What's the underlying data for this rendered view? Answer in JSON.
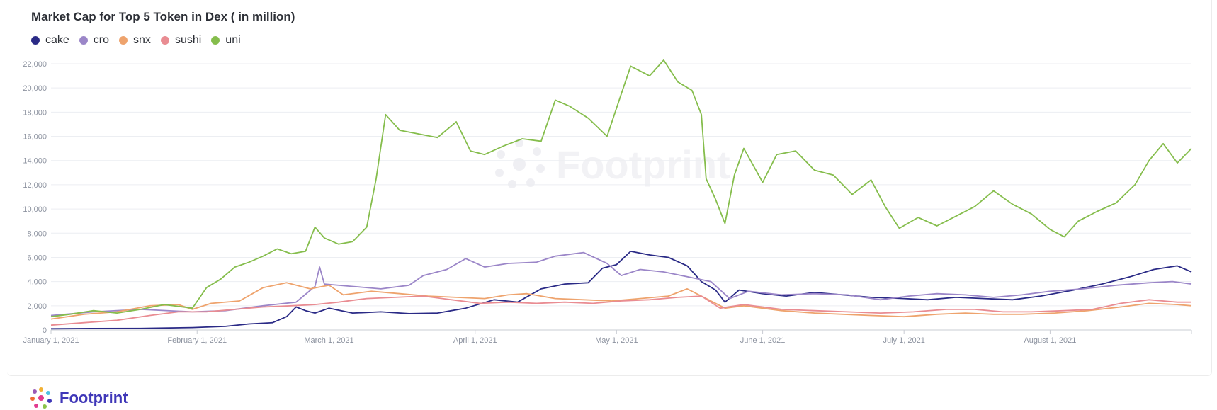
{
  "brand": {
    "name": "Footprint"
  },
  "colors": {
    "cake": "#2a2a86",
    "cro": "#9b86c8",
    "snx": "#eea36d",
    "sushi": "#e98c92",
    "uni": "#85bd4c",
    "grid": "#eceef2",
    "axis": "#c9ccd3"
  },
  "chart_data": {
    "type": "line",
    "title": "Market Cap for Top 5 Token in Dex ( in million)",
    "xlabel": "",
    "ylabel": "",
    "x_range": [
      "2021-01-01",
      "2021-08-31"
    ],
    "ylim": [
      0,
      22000
    ],
    "yticks": [
      0,
      2000,
      4000,
      6000,
      8000,
      10000,
      12000,
      14000,
      16000,
      18000,
      20000,
      22000
    ],
    "ytick_labels": [
      "0",
      "2,000",
      "4,000",
      "6,000",
      "8,000",
      "10,000",
      "12,000",
      "14,000",
      "16,000",
      "18,000",
      "20,000",
      "22,000"
    ],
    "xticks": [
      "2021-01-01",
      "2021-02-01",
      "2021-03-01",
      "2021-04-01",
      "2021-05-01",
      "2021-06-01",
      "2021-07-01",
      "2021-08-01"
    ],
    "xtick_labels": [
      "January 1, 2021",
      "February 1, 2021",
      "March 1, 2021",
      "April 1, 2021",
      "May 1, 2021",
      "June 1, 2021",
      "July 1, 2021",
      "August 1, 2021"
    ],
    "grid": true,
    "legend": "top-left",
    "series": [
      {
        "name": "cake",
        "color": "#2a2a86",
        "points": [
          [
            "2021-01-01",
            100
          ],
          [
            "2021-01-10",
            120
          ],
          [
            "2021-01-20",
            130
          ],
          [
            "2021-01-31",
            200
          ],
          [
            "2021-02-07",
            300
          ],
          [
            "2021-02-12",
            500
          ],
          [
            "2021-02-17",
            600
          ],
          [
            "2021-02-20",
            1100
          ],
          [
            "2021-02-22",
            1900
          ],
          [
            "2021-02-24",
            1600
          ],
          [
            "2021-02-26",
            1400
          ],
          [
            "2021-03-01",
            1800
          ],
          [
            "2021-03-06",
            1400
          ],
          [
            "2021-03-12",
            1500
          ],
          [
            "2021-03-18",
            1350
          ],
          [
            "2021-03-24",
            1400
          ],
          [
            "2021-03-30",
            1800
          ],
          [
            "2021-04-05",
            2500
          ],
          [
            "2021-04-10",
            2300
          ],
          [
            "2021-04-15",
            3400
          ],
          [
            "2021-04-20",
            3800
          ],
          [
            "2021-04-25",
            3900
          ],
          [
            "2021-04-28",
            5100
          ],
          [
            "2021-05-01",
            5400
          ],
          [
            "2021-05-04",
            6500
          ],
          [
            "2021-05-08",
            6200
          ],
          [
            "2021-05-12",
            6000
          ],
          [
            "2021-05-16",
            5300
          ],
          [
            "2021-05-19",
            4000
          ],
          [
            "2021-05-22",
            3300
          ],
          [
            "2021-05-24",
            2300
          ],
          [
            "2021-05-27",
            3300
          ],
          [
            "2021-06-01",
            3000
          ],
          [
            "2021-06-06",
            2800
          ],
          [
            "2021-06-12",
            3100
          ],
          [
            "2021-06-18",
            2900
          ],
          [
            "2021-06-24",
            2700
          ],
          [
            "2021-07-01",
            2600
          ],
          [
            "2021-07-06",
            2500
          ],
          [
            "2021-07-12",
            2700
          ],
          [
            "2021-07-18",
            2600
          ],
          [
            "2021-07-24",
            2500
          ],
          [
            "2021-07-30",
            2800
          ],
          [
            "2021-08-06",
            3300
          ],
          [
            "2021-08-12",
            3800
          ],
          [
            "2021-08-18",
            4400
          ],
          [
            "2021-08-23",
            5000
          ],
          [
            "2021-08-28",
            5300
          ],
          [
            "2021-08-31",
            4800
          ]
        ]
      },
      {
        "name": "cro",
        "color": "#9b86c8",
        "points": [
          [
            "2021-01-01",
            1200
          ],
          [
            "2021-01-10",
            1500
          ],
          [
            "2021-01-20",
            1700
          ],
          [
            "2021-01-31",
            1500
          ],
          [
            "2021-02-07",
            1600
          ],
          [
            "2021-02-15",
            2000
          ],
          [
            "2021-02-22",
            2300
          ],
          [
            "2021-02-26",
            3600
          ],
          [
            "2021-02-27",
            5200
          ],
          [
            "2021-02-28",
            3800
          ],
          [
            "2021-03-06",
            3600
          ],
          [
            "2021-03-12",
            3400
          ],
          [
            "2021-03-18",
            3700
          ],
          [
            "2021-03-21",
            4500
          ],
          [
            "2021-03-26",
            5000
          ],
          [
            "2021-03-30",
            5900
          ],
          [
            "2021-04-03",
            5200
          ],
          [
            "2021-04-08",
            5500
          ],
          [
            "2021-04-14",
            5600
          ],
          [
            "2021-04-18",
            6100
          ],
          [
            "2021-04-24",
            6400
          ],
          [
            "2021-04-29",
            5500
          ],
          [
            "2021-05-02",
            4500
          ],
          [
            "2021-05-06",
            5000
          ],
          [
            "2021-05-11",
            4800
          ],
          [
            "2021-05-16",
            4400
          ],
          [
            "2021-05-21",
            4000
          ],
          [
            "2021-05-25",
            2600
          ],
          [
            "2021-05-29",
            3200
          ],
          [
            "2021-06-05",
            2900
          ],
          [
            "2021-06-12",
            3000
          ],
          [
            "2021-06-19",
            2900
          ],
          [
            "2021-06-26",
            2500
          ],
          [
            "2021-07-02",
            2800
          ],
          [
            "2021-07-08",
            3000
          ],
          [
            "2021-07-14",
            2900
          ],
          [
            "2021-07-20",
            2700
          ],
          [
            "2021-07-26",
            2900
          ],
          [
            "2021-08-01",
            3200
          ],
          [
            "2021-08-08",
            3400
          ],
          [
            "2021-08-15",
            3700
          ],
          [
            "2021-08-22",
            3900
          ],
          [
            "2021-08-27",
            4000
          ],
          [
            "2021-08-31",
            3800
          ]
        ]
      },
      {
        "name": "snx",
        "color": "#eea36d",
        "points": [
          [
            "2021-01-01",
            900
          ],
          [
            "2021-01-08",
            1300
          ],
          [
            "2021-01-15",
            1500
          ],
          [
            "2021-01-22",
            2000
          ],
          [
            "2021-01-28",
            2100
          ],
          [
            "2021-01-31",
            1700
          ],
          [
            "2021-02-04",
            2200
          ],
          [
            "2021-02-10",
            2400
          ],
          [
            "2021-02-15",
            3500
          ],
          [
            "2021-02-20",
            3900
          ],
          [
            "2021-02-25",
            3400
          ],
          [
            "2021-03-01",
            3700
          ],
          [
            "2021-03-04",
            2900
          ],
          [
            "2021-03-10",
            3200
          ],
          [
            "2021-03-16",
            3000
          ],
          [
            "2021-03-22",
            2800
          ],
          [
            "2021-03-28",
            2700
          ],
          [
            "2021-04-03",
            2600
          ],
          [
            "2021-04-08",
            2900
          ],
          [
            "2021-04-12",
            3000
          ],
          [
            "2021-04-18",
            2600
          ],
          [
            "2021-04-24",
            2500
          ],
          [
            "2021-04-30",
            2400
          ],
          [
            "2021-05-06",
            2600
          ],
          [
            "2021-05-12",
            2800
          ],
          [
            "2021-05-16",
            3400
          ],
          [
            "2021-05-20",
            2600
          ],
          [
            "2021-05-24",
            1800
          ],
          [
            "2021-05-28",
            2000
          ],
          [
            "2021-06-05",
            1600
          ],
          [
            "2021-06-12",
            1400
          ],
          [
            "2021-06-18",
            1300
          ],
          [
            "2021-06-24",
            1200
          ],
          [
            "2021-07-01",
            1100
          ],
          [
            "2021-07-08",
            1300
          ],
          [
            "2021-07-14",
            1400
          ],
          [
            "2021-07-20",
            1300
          ],
          [
            "2021-07-26",
            1300
          ],
          [
            "2021-08-02",
            1400
          ],
          [
            "2021-08-09",
            1600
          ],
          [
            "2021-08-16",
            1900
          ],
          [
            "2021-08-22",
            2200
          ],
          [
            "2021-08-28",
            2100
          ],
          [
            "2021-08-31",
            2000
          ]
        ]
      },
      {
        "name": "sushi",
        "color": "#e98c92",
        "points": [
          [
            "2021-01-01",
            400
          ],
          [
            "2021-01-08",
            600
          ],
          [
            "2021-01-15",
            800
          ],
          [
            "2021-01-22",
            1200
          ],
          [
            "2021-01-28",
            1500
          ],
          [
            "2021-02-03",
            1500
          ],
          [
            "2021-02-09",
            1700
          ],
          [
            "2021-02-15",
            1900
          ],
          [
            "2021-02-21",
            2000
          ],
          [
            "2021-02-26",
            2100
          ],
          [
            "2021-03-03",
            2300
          ],
          [
            "2021-03-09",
            2600
          ],
          [
            "2021-03-15",
            2700
          ],
          [
            "2021-03-21",
            2800
          ],
          [
            "2021-03-27",
            2500
          ],
          [
            "2021-04-02",
            2200
          ],
          [
            "2021-04-08",
            2300
          ],
          [
            "2021-04-14",
            2200
          ],
          [
            "2021-04-20",
            2300
          ],
          [
            "2021-04-26",
            2200
          ],
          [
            "2021-05-02",
            2400
          ],
          [
            "2021-05-08",
            2500
          ],
          [
            "2021-05-14",
            2700
          ],
          [
            "2021-05-19",
            2800
          ],
          [
            "2021-05-23",
            1800
          ],
          [
            "2021-05-28",
            2100
          ],
          [
            "2021-06-05",
            1700
          ],
          [
            "2021-06-12",
            1600
          ],
          [
            "2021-06-19",
            1500
          ],
          [
            "2021-06-26",
            1400
          ],
          [
            "2021-07-03",
            1500
          ],
          [
            "2021-07-10",
            1700
          ],
          [
            "2021-07-16",
            1700
          ],
          [
            "2021-07-22",
            1500
          ],
          [
            "2021-07-28",
            1500
          ],
          [
            "2021-08-04",
            1600
          ],
          [
            "2021-08-10",
            1700
          ],
          [
            "2021-08-16",
            2200
          ],
          [
            "2021-08-22",
            2500
          ],
          [
            "2021-08-28",
            2300
          ],
          [
            "2021-08-31",
            2300
          ]
        ]
      },
      {
        "name": "uni",
        "color": "#85bd4c",
        "points": [
          [
            "2021-01-01",
            1100
          ],
          [
            "2021-01-05",
            1300
          ],
          [
            "2021-01-10",
            1600
          ],
          [
            "2021-01-15",
            1400
          ],
          [
            "2021-01-20",
            1700
          ],
          [
            "2021-01-25",
            2100
          ],
          [
            "2021-01-31",
            1800
          ],
          [
            "2021-02-03",
            3500
          ],
          [
            "2021-02-06",
            4200
          ],
          [
            "2021-02-09",
            5200
          ],
          [
            "2021-02-12",
            5600
          ],
          [
            "2021-02-15",
            6100
          ],
          [
            "2021-02-18",
            6700
          ],
          [
            "2021-02-21",
            6300
          ],
          [
            "2021-02-24",
            6500
          ],
          [
            "2021-02-26",
            8500
          ],
          [
            "2021-02-28",
            7600
          ],
          [
            "2021-03-03",
            7100
          ],
          [
            "2021-03-06",
            7300
          ],
          [
            "2021-03-09",
            8500
          ],
          [
            "2021-03-11",
            12500
          ],
          [
            "2021-03-13",
            17800
          ],
          [
            "2021-03-16",
            16500
          ],
          [
            "2021-03-20",
            16200
          ],
          [
            "2021-03-24",
            15900
          ],
          [
            "2021-03-28",
            17200
          ],
          [
            "2021-03-31",
            14800
          ],
          [
            "2021-04-03",
            14500
          ],
          [
            "2021-04-07",
            15200
          ],
          [
            "2021-04-11",
            15800
          ],
          [
            "2021-04-15",
            15600
          ],
          [
            "2021-04-18",
            19000
          ],
          [
            "2021-04-21",
            18500
          ],
          [
            "2021-04-25",
            17500
          ],
          [
            "2021-04-29",
            16000
          ],
          [
            "2021-05-02",
            19500
          ],
          [
            "2021-05-04",
            21800
          ],
          [
            "2021-05-08",
            21000
          ],
          [
            "2021-05-11",
            22300
          ],
          [
            "2021-05-14",
            20500
          ],
          [
            "2021-05-17",
            19800
          ],
          [
            "2021-05-19",
            17800
          ],
          [
            "2021-05-20",
            12500
          ],
          [
            "2021-05-22",
            10800
          ],
          [
            "2021-05-24",
            8800
          ],
          [
            "2021-05-26",
            12800
          ],
          [
            "2021-05-28",
            15000
          ],
          [
            "2021-06-01",
            12200
          ],
          [
            "2021-06-04",
            14500
          ],
          [
            "2021-06-08",
            14800
          ],
          [
            "2021-06-12",
            13200
          ],
          [
            "2021-06-16",
            12800
          ],
          [
            "2021-06-20",
            11200
          ],
          [
            "2021-06-24",
            12400
          ],
          [
            "2021-06-27",
            10200
          ],
          [
            "2021-06-30",
            8400
          ],
          [
            "2021-07-04",
            9300
          ],
          [
            "2021-07-08",
            8600
          ],
          [
            "2021-07-12",
            9400
          ],
          [
            "2021-07-16",
            10200
          ],
          [
            "2021-07-20",
            11500
          ],
          [
            "2021-07-24",
            10400
          ],
          [
            "2021-07-28",
            9600
          ],
          [
            "2021-08-01",
            8300
          ],
          [
            "2021-08-04",
            7700
          ],
          [
            "2021-08-07",
            9000
          ],
          [
            "2021-08-11",
            9800
          ],
          [
            "2021-08-15",
            10500
          ],
          [
            "2021-08-19",
            12000
          ],
          [
            "2021-08-22",
            14000
          ],
          [
            "2021-08-25",
            15400
          ],
          [
            "2021-08-28",
            13800
          ],
          [
            "2021-08-31",
            15000
          ]
        ]
      }
    ]
  }
}
